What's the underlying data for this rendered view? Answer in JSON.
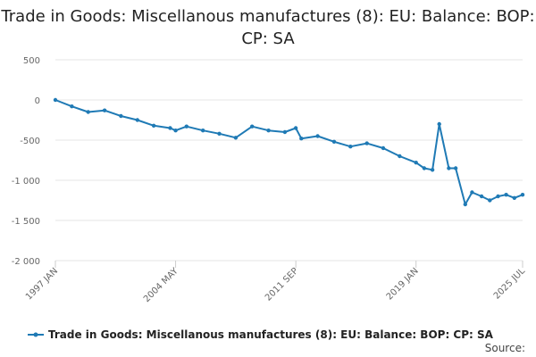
{
  "chart_data": {
    "type": "line",
    "title": "Trade in Goods: Miscellanous manufactures (8): EU: Balance: BOP: CP: SA",
    "xlabel": "",
    "ylabel": "",
    "ylim": [
      -2000,
      500
    ],
    "yticks": [
      "500",
      "0",
      "-500",
      "-1 000",
      "-1 500",
      "-2 000"
    ],
    "ytick_values": [
      500,
      0,
      -500,
      -1000,
      -1500,
      -2000
    ],
    "xticks": [
      "1997 JAN",
      "2004 MAY",
      "2011 SEP",
      "2019 JAN",
      "2025 JUL"
    ],
    "grid": true,
    "legend_position": "bottom",
    "color": "#1f7ab5",
    "series": [
      {
        "name": "Trade in Goods: Miscellanous manufactures (8): EU: Balance: BOP: CP: SA",
        "x": [
          "1997 JAN",
          "1998 JAN",
          "1999 JAN",
          "2000 JAN",
          "2001 JAN",
          "2002 JAN",
          "2003 JAN",
          "2004 JAN",
          "2004 MAY",
          "2005 JAN",
          "2006 JAN",
          "2007 JAN",
          "2008 JAN",
          "2009 JAN",
          "2010 JAN",
          "2011 JAN",
          "2011 SEP",
          "2012 JAN",
          "2013 JAN",
          "2014 JAN",
          "2015 JAN",
          "2016 JAN",
          "2017 JAN",
          "2018 JAN",
          "2019 JAN",
          "2019 JUL",
          "2020 JAN",
          "2020 JUN",
          "2021 JAN",
          "2021 JUN",
          "2022 JAN",
          "2022 JUN",
          "2023 JAN",
          "2023 JUL",
          "2024 JAN",
          "2024 JUL",
          "2025 JAN",
          "2025 JUL"
        ],
        "values": [
          0,
          -80,
          -150,
          -130,
          -200,
          -250,
          -320,
          -350,
          -380,
          -330,
          -380,
          -420,
          -470,
          -330,
          -380,
          -400,
          -350,
          -480,
          -450,
          -520,
          -580,
          -540,
          -600,
          -700,
          -780,
          -850,
          -870,
          -300,
          -850,
          -850,
          -1300,
          -1150,
          -1200,
          -1250,
          -1200,
          -1180,
          -1220,
          -1180
        ]
      }
    ]
  },
  "legend": {
    "label": "Trade in Goods: Miscellanous manufactures (8): EU: Balance: BOP: CP: SA"
  },
  "source_label": "Source:"
}
